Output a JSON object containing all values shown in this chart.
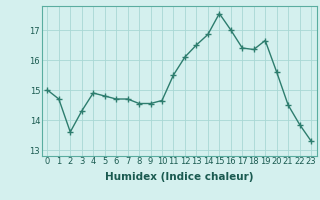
{
  "x": [
    0,
    1,
    2,
    3,
    4,
    5,
    6,
    7,
    8,
    9,
    10,
    11,
    12,
    13,
    14,
    15,
    16,
    17,
    18,
    19,
    20,
    21,
    22,
    23
  ],
  "y": [
    15.0,
    14.7,
    13.6,
    14.3,
    14.9,
    14.8,
    14.7,
    14.7,
    14.55,
    14.55,
    14.65,
    15.5,
    16.1,
    16.5,
    16.85,
    17.55,
    17.0,
    16.4,
    16.35,
    16.65,
    15.6,
    14.5,
    13.85,
    13.3
  ],
  "line_color": "#2d7d6e",
  "marker": "+",
  "marker_size": 4,
  "bg_color": "#d4f0ee",
  "grid_color": "#a8d8d4",
  "xlabel": "Humidex (Indice chaleur)",
  "xlim": [
    -0.5,
    23.5
  ],
  "ylim": [
    12.8,
    17.8
  ],
  "yticks": [
    13,
    14,
    15,
    16,
    17
  ],
  "xticks": [
    0,
    1,
    2,
    3,
    4,
    5,
    6,
    7,
    8,
    9,
    10,
    11,
    12,
    13,
    14,
    15,
    16,
    17,
    18,
    19,
    20,
    21,
    22,
    23
  ],
  "xtick_labels": [
    "0",
    "1",
    "2",
    "3",
    "4",
    "5",
    "6",
    "7",
    "8",
    "9",
    "10",
    "11",
    "12",
    "13",
    "14",
    "15",
    "16",
    "17",
    "18",
    "19",
    "20",
    "21",
    "22",
    "23"
  ],
  "tick_fontsize": 6.0,
  "xlabel_fontsize": 7.5,
  "line_width": 1.0,
  "spine_color": "#5aada0",
  "tick_color": "#1a5a50",
  "xlabel_color": "#1a5a50"
}
